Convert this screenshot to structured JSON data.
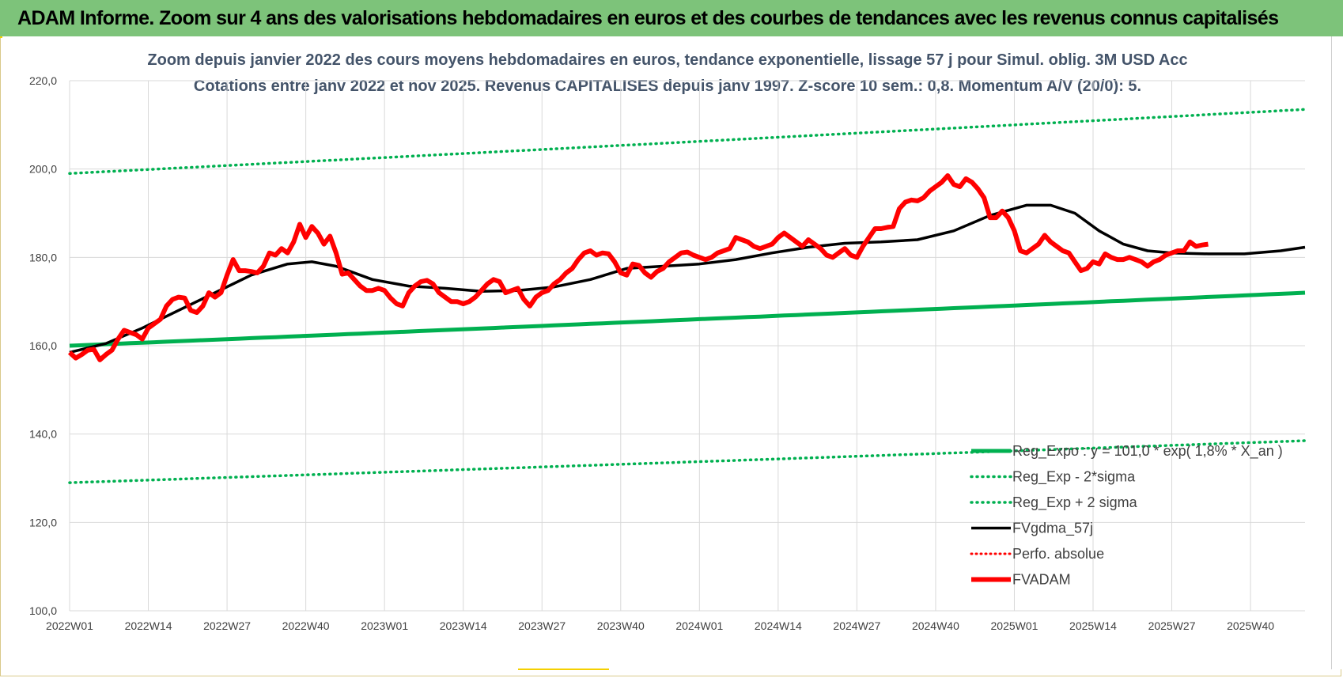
{
  "banner": {
    "title": "ADAM Informe. Zoom sur 4 ans des valorisations hebdomadaires en euros et des courbes de tendances avec les revenus connus capitalisés"
  },
  "colors": {
    "banner_bg": "#7dc37a",
    "reg_exp": "#00b050",
    "smooth": "#000000",
    "price": "#ff0000",
    "title": "#44546a",
    "grid": "#d9d9d9"
  },
  "chart_data": {
    "type": "line",
    "title_line1": "Zoom depuis janvier 2022 des cours moyens hebdomadaires en euros, tendance exponentielle, lissage 57 j pour Simul. oblig. 3M USD Acc",
    "title_line2": "Cotations entre janv 2022 et nov 2025. Revenus CAPITALISES depuis janv 1997. Z-score 10 sem.: 0,8. Momentum A/V (20/0): 5.",
    "xlabel": "",
    "ylabel": "",
    "ylim": [
      100,
      220
    ],
    "yticks": [
      "100,0",
      "120,0",
      "140,0",
      "160,0",
      "180,0",
      "200,0",
      "220,0"
    ],
    "ytick_values": [
      100,
      120,
      140,
      160,
      180,
      200,
      220
    ],
    "week_range": [
      0,
      204
    ],
    "xticks": [
      "2022W01",
      "2022W14",
      "2022W27",
      "2022W40",
      "2023W01",
      "2023W14",
      "2023W27",
      "2023W40",
      "2024W01",
      "2024W14",
      "2024W27",
      "2024W40",
      "2025W01",
      "2025W14",
      "2025W27",
      "2025W40"
    ],
    "xtick_weeks": [
      0,
      13,
      26,
      39,
      52,
      65,
      78,
      91,
      104,
      117,
      130,
      143,
      156,
      169,
      182,
      195
    ],
    "legend": [
      {
        "label": "Reg_Expo : y = 101,0 * exp( 1,8% * X_an )",
        "style": "solid-green"
      },
      {
        "label": "Reg_Exp - 2*sigma",
        "style": "dotted-green"
      },
      {
        "label": "Reg_Exp + 2 sigma",
        "style": "dotted-green"
      },
      {
        "label": "FVgdma_57j",
        "style": "solid-black"
      },
      {
        "label": "Perfo. absolue",
        "style": "dotted-red"
      },
      {
        "label": "FVADAM",
        "style": "solid-red"
      }
    ],
    "series": [
      {
        "name": "Reg_Expo : y = 101,0 * exp( 1,8% * X_an )",
        "style": "solid-green",
        "start": 160.0,
        "end": 172.0
      },
      {
        "name": "Reg_Exp - 2*sigma",
        "style": "dotted-green",
        "start": 129.0,
        "end": 138.5
      },
      {
        "name": "Reg_Exp + 2 sigma",
        "style": "dotted-green",
        "start": 199.0,
        "end": 213.5
      },
      {
        "name": "FVgdma_57j",
        "style": "solid-black",
        "points": [
          [
            0,
            158.5
          ],
          [
            6,
            160.5
          ],
          [
            12,
            164
          ],
          [
            18,
            168
          ],
          [
            24,
            172
          ],
          [
            30,
            176
          ],
          [
            36,
            178.5
          ],
          [
            40,
            179
          ],
          [
            44,
            178
          ],
          [
            50,
            175
          ],
          [
            56,
            173.5
          ],
          [
            62,
            173
          ],
          [
            68,
            172.3
          ],
          [
            74,
            172.5
          ],
          [
            80,
            173.3
          ],
          [
            86,
            175
          ],
          [
            92,
            177.5
          ],
          [
            98,
            178
          ],
          [
            104,
            178.5
          ],
          [
            110,
            179.5
          ],
          [
            116,
            181
          ],
          [
            122,
            182.3
          ],
          [
            128,
            183.2
          ],
          [
            134,
            183.5
          ],
          [
            140,
            184
          ],
          [
            146,
            186
          ],
          [
            152,
            189.5
          ],
          [
            158,
            191.8
          ],
          [
            162,
            191.8
          ],
          [
            166,
            190
          ],
          [
            170,
            186
          ],
          [
            174,
            183
          ],
          [
            178,
            181.5
          ],
          [
            182,
            181
          ],
          [
            188,
            180.8
          ],
          [
            194,
            180.8
          ],
          [
            200,
            181.5
          ],
          [
            204,
            182.3
          ]
        ]
      },
      {
        "name": "FVADAM",
        "style": "solid-red",
        "points": [
          [
            0,
            158.5
          ],
          [
            1,
            157.2
          ],
          [
            2,
            158
          ],
          [
            3,
            159
          ],
          [
            4,
            159.2
          ],
          [
            5,
            156.8
          ],
          [
            6,
            158
          ],
          [
            7,
            159
          ],
          [
            8,
            161.5
          ],
          [
            9,
            163.5
          ],
          [
            10,
            163
          ],
          [
            11,
            162.5
          ],
          [
            12,
            161.5
          ],
          [
            13,
            164
          ],
          [
            14,
            165
          ],
          [
            15,
            166
          ],
          [
            16,
            169
          ],
          [
            17,
            170.5
          ],
          [
            18,
            171
          ],
          [
            19,
            170.8
          ],
          [
            20,
            168
          ],
          [
            21,
            167.5
          ],
          [
            22,
            169
          ],
          [
            23,
            172
          ],
          [
            24,
            171
          ],
          [
            25,
            172
          ],
          [
            26,
            176
          ],
          [
            27,
            179.5
          ],
          [
            28,
            177
          ],
          [
            29,
            177
          ],
          [
            30,
            176.8
          ],
          [
            31,
            176.5
          ],
          [
            32,
            178
          ],
          [
            33,
            181
          ],
          [
            34,
            180.5
          ],
          [
            35,
            182
          ],
          [
            36,
            181
          ],
          [
            37,
            183.5
          ],
          [
            38,
            187.5
          ],
          [
            39,
            184.5
          ],
          [
            40,
            187
          ],
          [
            41,
            185.5
          ],
          [
            42,
            183
          ],
          [
            43,
            184.8
          ],
          [
            44,
            181
          ],
          [
            45,
            176.2
          ],
          [
            46,
            176.5
          ],
          [
            47,
            175
          ],
          [
            48,
            173.5
          ],
          [
            49,
            172.5
          ],
          [
            50,
            172.5
          ],
          [
            51,
            173
          ],
          [
            52,
            172.5
          ],
          [
            53,
            170.8
          ],
          [
            54,
            169.5
          ],
          [
            55,
            169
          ],
          [
            56,
            172
          ],
          [
            57,
            173.5
          ],
          [
            58,
            174.5
          ],
          [
            59,
            174.8
          ],
          [
            60,
            174
          ],
          [
            61,
            172
          ],
          [
            62,
            171
          ],
          [
            63,
            170
          ],
          [
            64,
            170
          ],
          [
            65,
            169.5
          ],
          [
            66,
            170
          ],
          [
            67,
            171
          ],
          [
            68,
            172.5
          ],
          [
            69,
            174
          ],
          [
            70,
            175
          ],
          [
            71,
            174.5
          ],
          [
            72,
            172
          ],
          [
            73,
            172.5
          ],
          [
            74,
            173
          ],
          [
            75,
            170.5
          ],
          [
            76,
            169
          ],
          [
            77,
            171
          ],
          [
            78,
            172
          ],
          [
            79,
            172.5
          ],
          [
            80,
            174
          ],
          [
            81,
            175
          ],
          [
            82,
            176.5
          ],
          [
            83,
            177.5
          ],
          [
            84,
            179.5
          ],
          [
            85,
            181
          ],
          [
            86,
            181.5
          ],
          [
            87,
            180.5
          ],
          [
            88,
            181
          ],
          [
            89,
            180.8
          ],
          [
            90,
            179
          ],
          [
            91,
            176.5
          ],
          [
            92,
            176
          ],
          [
            93,
            178.5
          ],
          [
            94,
            178.2
          ],
          [
            95,
            176.5
          ],
          [
            96,
            175.5
          ],
          [
            97,
            176.8
          ],
          [
            98,
            177.5
          ],
          [
            99,
            179
          ],
          [
            100,
            180
          ],
          [
            101,
            181
          ],
          [
            102,
            181.2
          ],
          [
            103,
            180.5
          ],
          [
            104,
            180
          ],
          [
            105,
            179.5
          ],
          [
            106,
            180
          ],
          [
            107,
            181
          ],
          [
            108,
            181.5
          ],
          [
            109,
            182
          ],
          [
            110,
            184.5
          ],
          [
            111,
            184
          ],
          [
            112,
            183.5
          ],
          [
            113,
            182.5
          ],
          [
            114,
            182
          ],
          [
            115,
            182.5
          ],
          [
            116,
            183
          ],
          [
            117,
            184.5
          ],
          [
            118,
            185.5
          ],
          [
            119,
            184.5
          ],
          [
            120,
            183.5
          ],
          [
            121,
            182.5
          ],
          [
            122,
            184
          ],
          [
            123,
            183
          ],
          [
            124,
            182
          ],
          [
            125,
            180.5
          ],
          [
            126,
            180
          ],
          [
            127,
            181
          ],
          [
            128,
            182
          ],
          [
            129,
            180.5
          ],
          [
            130,
            180
          ],
          [
            131,
            182.5
          ],
          [
            132,
            184.5
          ],
          [
            133,
            186.5
          ],
          [
            134,
            186.5
          ],
          [
            135,
            186.8
          ],
          [
            136,
            187
          ],
          [
            137,
            191
          ],
          [
            138,
            192.5
          ],
          [
            139,
            193
          ],
          [
            140,
            192.8
          ],
          [
            141,
            193.5
          ],
          [
            142,
            195
          ],
          [
            143,
            196
          ],
          [
            144,
            197
          ],
          [
            145,
            198.5
          ],
          [
            146,
            196.5
          ],
          [
            147,
            196
          ],
          [
            148,
            197.8
          ],
          [
            149,
            197
          ],
          [
            150,
            195.5
          ],
          [
            151,
            193.5
          ],
          [
            152,
            189
          ],
          [
            153,
            189
          ],
          [
            154,
            190.5
          ],
          [
            155,
            189
          ],
          [
            156,
            186
          ],
          [
            157,
            181.5
          ],
          [
            158,
            181
          ],
          [
            159,
            182
          ],
          [
            160,
            183
          ],
          [
            161,
            185
          ],
          [
            162,
            183.5
          ],
          [
            163,
            182.5
          ],
          [
            164,
            181.5
          ],
          [
            165,
            181
          ],
          [
            166,
            179
          ],
          [
            167,
            177
          ],
          [
            168,
            177.5
          ],
          [
            169,
            179
          ],
          [
            170,
            178.5
          ],
          [
            171,
            180.8
          ],
          [
            172,
            180
          ],
          [
            173,
            179.5
          ],
          [
            174,
            179.5
          ],
          [
            175,
            180
          ],
          [
            176,
            179.5
          ],
          [
            177,
            179
          ],
          [
            178,
            178
          ],
          [
            179,
            179
          ],
          [
            180,
            179.5
          ],
          [
            181,
            180.5
          ],
          [
            182,
            181
          ],
          [
            183,
            181.5
          ],
          [
            184,
            181.5
          ],
          [
            185,
            183.5
          ],
          [
            186,
            182.5
          ],
          [
            187,
            182.8
          ],
          [
            188,
            183
          ]
        ]
      }
    ]
  }
}
